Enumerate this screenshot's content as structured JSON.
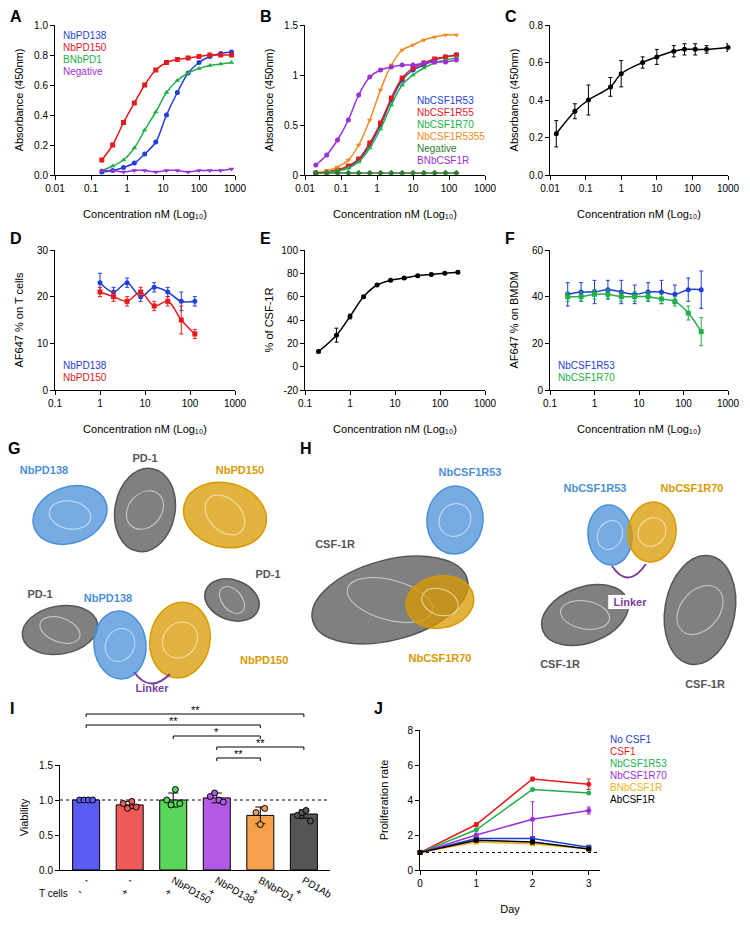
{
  "chart_data": [
    {
      "panel": "A",
      "type": "line",
      "log": "x",
      "legend": "top left",
      "x_label": "Concentration nM (Log₁₀)",
      "y_label": "Absorbance (450nm)",
      "x": [
        0.2,
        0.4,
        0.8,
        1.6,
        3.1,
        6.3,
        12.5,
        25,
        50,
        100,
        200,
        400,
        800
      ],
      "xlim": [
        0.01,
        1000
      ],
      "xticks": [
        0.01,
        0.1,
        1,
        10,
        100,
        1000
      ],
      "ylim": [
        0,
        1
      ],
      "yticks": [
        {
          "value": 0,
          "label": "0.0"
        },
        {
          "value": 0.2,
          "label": "0.2"
        },
        {
          "value": 0.4,
          "label": "0.4"
        },
        {
          "value": 0.6,
          "label": "0.6"
        },
        {
          "value": 0.8,
          "label": "0.8"
        },
        {
          "value": 1,
          "label": "1.0"
        }
      ],
      "series": [
        {
          "name": "NbPD138",
          "color": "#1f3fd8",
          "marker": "circle",
          "values": [
            0.02,
            0.03,
            0.05,
            0.08,
            0.14,
            0.22,
            0.4,
            0.55,
            0.68,
            0.75,
            0.79,
            0.81,
            0.82
          ]
        },
        {
          "name": "NbPD150",
          "color": "#e41a1c",
          "marker": "square",
          "values": [
            0.1,
            0.2,
            0.35,
            0.48,
            0.6,
            0.7,
            0.75,
            0.77,
            0.78,
            0.79,
            0.8,
            0.8,
            0.8
          ]
        },
        {
          "name": "BNbPD1",
          "color": "#22b04b",
          "marker": "triangle-up",
          "values": [
            0.03,
            0.06,
            0.1,
            0.18,
            0.3,
            0.42,
            0.55,
            0.63,
            0.68,
            0.71,
            0.73,
            0.74,
            0.75
          ]
        },
        {
          "name": "Negative",
          "color": "#9b30d9",
          "marker": "triangle-down",
          "values": [
            0.03,
            0.03,
            0.02,
            0.03,
            0.03,
            0.02,
            0.03,
            0.03,
            0.02,
            0.03,
            0.03,
            0.03,
            0.04
          ]
        }
      ]
    },
    {
      "panel": "B",
      "type": "line",
      "log": "x",
      "legend": "bottom right",
      "x_label": "Concentration nM (Log₁₀)",
      "y_label": "Absorbance (450nm)",
      "x": [
        0.02,
        0.04,
        0.08,
        0.16,
        0.31,
        0.63,
        1.25,
        2.5,
        5,
        10,
        20,
        40,
        80,
        160
      ],
      "xlim": [
        0.01,
        1000
      ],
      "xticks": [
        0.01,
        0.1,
        1,
        10,
        100,
        1000
      ],
      "ylim": [
        0,
        1.5
      ],
      "yticks": [
        0,
        0.5,
        1,
        1.5
      ],
      "series": [
        {
          "name": "NbCSF1R53",
          "color": "#1f3fd8",
          "marker": "circle",
          "values": [
            0.02,
            0.03,
            0.05,
            0.08,
            0.15,
            0.3,
            0.5,
            0.75,
            0.95,
            1.05,
            1.1,
            1.15,
            1.18,
            1.2
          ]
        },
        {
          "name": "NbCSF1R55",
          "color": "#e41a1c",
          "marker": "square",
          "values": [
            0.02,
            0.03,
            0.05,
            0.09,
            0.16,
            0.32,
            0.52,
            0.77,
            0.97,
            1.07,
            1.12,
            1.16,
            1.18,
            1.2
          ]
        },
        {
          "name": "NbCSF1R70",
          "color": "#22b04b",
          "marker": "triangle-up",
          "values": [
            0.02,
            0.03,
            0.04,
            0.07,
            0.13,
            0.27,
            0.46,
            0.7,
            0.9,
            1.0,
            1.07,
            1.12,
            1.15,
            1.17
          ]
        },
        {
          "name": "NbCSF1R5355",
          "color": "#f08a24",
          "marker": "triangle-down",
          "values": [
            0.02,
            0.04,
            0.08,
            0.15,
            0.3,
            0.55,
            0.85,
            1.1,
            1.25,
            1.3,
            1.35,
            1.38,
            1.4,
            1.4
          ]
        },
        {
          "name": "Negative",
          "color": "#2f7d32",
          "marker": "diamond",
          "values": [
            0.02,
            0.02,
            0.02,
            0.02,
            0.02,
            0.02,
            0.02,
            0.02,
            0.02,
            0.02,
            0.02,
            0.02,
            0.02,
            0.02
          ]
        },
        {
          "name": "BNbCSF1R",
          "color": "#9b30d9",
          "marker": "circle",
          "values": [
            0.1,
            0.2,
            0.35,
            0.55,
            0.8,
            0.98,
            1.05,
            1.08,
            1.1,
            1.1,
            1.12,
            1.13,
            1.13,
            1.15
          ]
        }
      ]
    },
    {
      "panel": "C",
      "type": "line",
      "log": "x",
      "x_label": "Concentration nM (Log₁₀)",
      "y_label": "Absorbance (450nm)",
      "x": [
        0.015,
        0.05,
        0.12,
        0.5,
        1,
        4,
        10,
        30,
        60,
        120,
        250,
        1000
      ],
      "xlim": [
        0.01,
        1000
      ],
      "xticks": [
        0.01,
        0.1,
        1,
        10,
        100,
        1000
      ],
      "ylim": [
        0,
        0.8
      ],
      "yticks": [
        {
          "value": 0,
          "label": "0.0"
        },
        {
          "value": 0.2,
          "label": "0.2"
        },
        {
          "value": 0.4,
          "label": "0.4"
        },
        {
          "value": 0.6,
          "label": "0.6"
        },
        {
          "value": 0.8,
          "label": "0.8"
        }
      ],
      "series": [
        {
          "color": "#000000",
          "marker": "circle",
          "values": [
            0.22,
            0.34,
            0.4,
            0.47,
            0.54,
            0.6,
            0.63,
            0.66,
            0.67,
            0.67,
            0.67,
            0.68
          ],
          "errors": [
            0.07,
            0.04,
            0.08,
            0.05,
            0.07,
            0.03,
            0.04,
            0.03,
            0.03,
            0.03,
            0.02,
            0.02
          ]
        }
      ]
    },
    {
      "panel": "D",
      "type": "line",
      "log": "x",
      "legend": "bottom left",
      "x_label": "Concentration nM (Log₁₀)",
      "y_label": "AF647 % on T cells",
      "x": [
        1,
        2,
        4,
        8,
        16,
        32,
        64,
        128
      ],
      "xlim": [
        0.1,
        1000
      ],
      "xticks": [
        0.1,
        1,
        10,
        100,
        1000
      ],
      "ylim": [
        0,
        30
      ],
      "yticks": [
        0,
        10,
        20,
        30
      ],
      "series": [
        {
          "name": "NbPD138",
          "color": "#1f3fd8",
          "marker": "circle",
          "values": [
            23,
            21,
            23,
            20,
            22,
            21,
            19,
            19
          ],
          "errors": [
            2,
            1,
            1,
            1,
            1,
            1,
            2,
            1
          ]
        },
        {
          "name": "NbPD150",
          "color": "#e41a1c",
          "marker": "square",
          "values": [
            21,
            20,
            19,
            21,
            18,
            19,
            15,
            12
          ],
          "errors": [
            1,
            1,
            1,
            1,
            1,
            1,
            3,
            1
          ]
        }
      ]
    },
    {
      "panel": "E",
      "type": "line",
      "log": "x",
      "x_label": "Concentration nM (Log₁₀)",
      "y_label": "% of CSF-1R",
      "x": [
        0.2,
        0.5,
        1,
        2,
        4,
        8,
        16,
        32,
        64,
        128,
        250
      ],
      "xlim": [
        0.1,
        1000
      ],
      "xticks": [
        0.1,
        1,
        10,
        100,
        1000
      ],
      "ylim": [
        -20,
        100
      ],
      "yticks": [
        -20,
        0,
        20,
        40,
        60,
        80,
        100
      ],
      "series": [
        {
          "color": "#000000",
          "marker": "circle",
          "values": [
            13,
            27,
            43,
            60,
            70,
            74,
            76,
            78,
            79,
            80,
            81
          ],
          "errors": [
            1,
            6,
            2,
            1,
            1,
            1,
            1,
            1,
            1,
            1,
            1
          ]
        }
      ]
    },
    {
      "panel": "F",
      "type": "line",
      "log": "x",
      "legend": "bottom left",
      "x_label": "Concentration nM (Log₁₀)",
      "y_label": "AF647 % on BMDM",
      "x": [
        0.25,
        0.5,
        1,
        2,
        4,
        8,
        16,
        32,
        64,
        128,
        250
      ],
      "xlim": [
        0.1,
        1000
      ],
      "xticks": [
        0.1,
        1,
        10,
        100,
        1000
      ],
      "ylim": [
        0,
        60
      ],
      "yticks": [
        0,
        20,
        40,
        60
      ],
      "series": [
        {
          "name": "NbCSF1R53",
          "color": "#1f3fd8",
          "marker": "circle",
          "values": [
            41,
            42,
            42,
            43,
            42,
            41,
            42,
            42,
            41,
            43,
            43
          ],
          "errors": [
            5,
            4,
            5,
            4,
            5,
            4,
            4,
            5,
            4,
            5,
            8
          ]
        },
        {
          "name": "NbCSF1R70",
          "color": "#22b04b",
          "marker": "square",
          "values": [
            40,
            40,
            41,
            41,
            40,
            40,
            40,
            39,
            38,
            33,
            25
          ],
          "errors": [
            2,
            2,
            2,
            2,
            2,
            2,
            2,
            2,
            2,
            3,
            6
          ]
        }
      ]
    },
    {
      "panel": "I",
      "type": "bar",
      "y_label": "Viability",
      "categories": [
        "-",
        "-",
        "NbPD150",
        "NbPD138",
        "BNbPD1",
        "PD1Ab"
      ],
      "second_row": {
        "label": "T cells",
        "values": [
          "-",
          "+",
          "+",
          "+",
          "+",
          "+"
        ]
      },
      "values": [
        1.0,
        0.93,
        1.0,
        1.03,
        0.78,
        0.8
      ],
      "errors": [
        0,
        0.05,
        0.1,
        0.07,
        0.12,
        0.06
      ],
      "points": [
        [
          1,
          1,
          1,
          1
        ],
        [
          0.95,
          0.88,
          0.98,
          0.9
        ],
        [
          1,
          0.93,
          1.15,
          0.95
        ],
        [
          1.05,
          1.1,
          1.0,
          0.97
        ],
        [
          0.82,
          0.65,
          0.88
        ],
        [
          0.78,
          0.82,
          0.85,
          0.7
        ]
      ],
      "colors": [
        "#5a5cf5",
        "#f05a5a",
        "#5ad65a",
        "#b25ae6",
        "#f5a04a",
        "#555555"
      ],
      "reference_y": 1,
      "ylim": [
        0,
        1.5
      ],
      "yticks": [
        {
          "value": 0,
          "label": "0.0"
        },
        {
          "value": 0.5,
          "label": "0.5"
        },
        {
          "value": 1,
          "label": "1.0"
        },
        {
          "value": 1.5,
          "label": "1.5"
        }
      ],
      "comparisons": [
        {
          "from": 3,
          "to": 4,
          "label": "**"
        },
        {
          "from": 3,
          "to": 5,
          "label": "**"
        },
        {
          "from": 2,
          "to": 4,
          "label": "*"
        },
        {
          "from": 0,
          "to": 4,
          "label": "**"
        },
        {
          "from": 0,
          "to": 5,
          "label": "**"
        }
      ]
    },
    {
      "panel": "J",
      "type": "line",
      "legend": "right",
      "x_label": "Day",
      "y_label": "Proliferation rate",
      "x": [
        0,
        1,
        2,
        3
      ],
      "xlim": [
        0,
        3.2
      ],
      "xticks": [
        0,
        1,
        2,
        3
      ],
      "ylim": [
        0,
        8
      ],
      "yticks": [
        0,
        2,
        4,
        6,
        8
      ],
      "reference_y": 1,
      "series": [
        {
          "name": "No CSF1",
          "color": "#1f3fd8",
          "marker": "square",
          "values": [
            1,
            1.8,
            1.8,
            1.3
          ]
        },
        {
          "name": "CSF1",
          "color": "#e41a1c",
          "marker": "circle",
          "values": [
            1,
            2.6,
            5.2,
            4.9
          ],
          "errors": [
            0,
            0.1,
            0.1,
            0.3
          ]
        },
        {
          "name": "NbCSF1R53",
          "color": "#22b04b",
          "marker": "circle",
          "values": [
            1,
            2.3,
            4.6,
            4.4
          ]
        },
        {
          "name": "NbCSF1R70",
          "color": "#9b30d9",
          "marker": "circle",
          "values": [
            1,
            2.0,
            2.9,
            3.4
          ],
          "errors": [
            0,
            0.1,
            1.0,
            0.2
          ]
        },
        {
          "name": "BNbCSF1R",
          "color": "#f0b020",
          "marker": "square",
          "values": [
            1,
            1.6,
            1.5,
            1.2
          ]
        },
        {
          "name": "AbCSF1R",
          "color": "#000000",
          "marker": "square",
          "values": [
            1,
            1.7,
            1.6,
            1.2
          ]
        }
      ]
    }
  ],
  "diagrams": [
    {
      "panel": "G",
      "views": [
        [
          {
            "label": "NbPD138",
            "color": "#4a90d9"
          },
          {
            "label": "PD-1",
            "color": "#555555"
          },
          {
            "label": "NbPD150",
            "color": "#d99a00"
          }
        ],
        [
          {
            "label": "PD-1",
            "color": "#555555"
          },
          {
            "label": "PD-1",
            "color": "#555555"
          },
          {
            "label": "NbPD138",
            "color": "#4a90d9"
          },
          {
            "label": "NbPD150",
            "color": "#d99a00"
          },
          {
            "label": "Linker",
            "color": "#7b3f9e"
          }
        ]
      ]
    },
    {
      "panel": "H",
      "views": [
        [
          {
            "label": "CSF-1R",
            "color": "#555555"
          },
          {
            "label": "NbCSF1R53",
            "color": "#4a90d9"
          },
          {
            "label": "NbCSF1R70",
            "color": "#d99a00"
          }
        ],
        [
          {
            "label": "NbCSF1R53",
            "color": "#4a90d9"
          },
          {
            "label": "NbCSF1R70",
            "color": "#d99a00"
          },
          {
            "label": "CSF-1R",
            "color": "#555555"
          },
          {
            "label": "CSF-1R",
            "color": "#555555"
          },
          {
            "label": "Linker",
            "color": "#7b3f9e"
          }
        ]
      ]
    }
  ]
}
